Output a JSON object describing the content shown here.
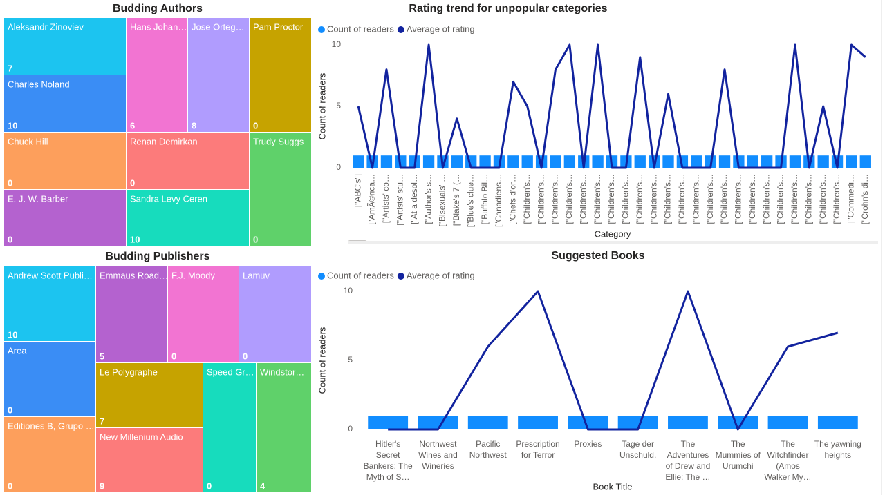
{
  "chart_data": [
    {
      "type": "treemap",
      "title": "Budding Authors",
      "categories": [
        "Aleksandr Zinoviev",
        "Charles Noland",
        "Hans Johan…",
        "Jose Orteg…",
        "Pam Proctor",
        "Chuck Hill",
        "Renan Demirkan",
        "Trudy Suggs",
        "E. J. W. Barber",
        "Sandra Levy Ceren"
      ],
      "values": [
        7,
        10,
        6,
        8,
        0,
        0,
        0,
        0,
        0,
        10
      ],
      "colors": [
        "#1cc4f0",
        "#3a8df5",
        "#f274d2",
        "#b09cfe",
        "#c6a300",
        "#fd9f5c",
        "#fc7b7b",
        "#5fd16a",
        "#b462cf",
        "#17dcbd"
      ]
    },
    {
      "type": "treemap",
      "title": "Budding Publishers",
      "categories": [
        "Andrew Scott Publi…",
        "Area",
        "Editiones B, Grupo …",
        "Emmaus Road…",
        "F.J. Moody",
        "Lamuv",
        "Le Polygraphe",
        "New Millenium Audio",
        "Speed Gr…",
        "Windstor…"
      ],
      "values": [
        10,
        0,
        0,
        5,
        0,
        0,
        7,
        9,
        0,
        4
      ],
      "colors": [
        "#1cc4f0",
        "#3a8df5",
        "#fd9f5c",
        "#b462cf",
        "#f274d2",
        "#b09cfe",
        "#c6a300",
        "#fc7b7b",
        "#17dcbd",
        "#5fd16a"
      ]
    },
    {
      "type": "combo",
      "title": "Rating trend for unpopular categories",
      "x_label": "Category",
      "y_label": "Count of readers",
      "categories": [
        "[\"ABC's\"]",
        "[\"AmÃ©rica…",
        "[\"Artists' co…",
        "[\"Artists' stu…",
        "[\"At a desol…",
        "[\"Author's s…",
        "[\"Bisexuals' …",
        "[\"Blake's 7 (…",
        "[\"Blue's clue…",
        "[\"Buffalo Bil…",
        "[\"Canadiens…",
        "[\"Chefs d'or…",
        "[\"Children's…",
        "[\"Children's…",
        "[\"Children's…",
        "[\"Children's…",
        "[\"Children's…",
        "[\"Children's…",
        "[\"Children's…",
        "[\"Children's…",
        "[\"Children's…",
        "[\"Children's…",
        "[\"Children's…",
        "[\"Children's…",
        "[\"Children's…",
        "[\"Children's…",
        "[\"Children's…",
        "[\"Children's…",
        "[\"Children's…",
        "[\"Children's…",
        "[\"Children's…",
        "[\"Children's…",
        "[\"Children's…",
        "[\"Children's…",
        "[\"Children's…",
        "[\"Commedi…",
        "[\"Crohn's di…"
      ],
      "series": [
        {
          "name": "Count of readers",
          "color": "#118dff",
          "kind": "bar",
          "values": [
            1,
            1,
            1,
            1,
            1,
            1,
            1,
            1,
            1,
            1,
            1,
            1,
            1,
            1,
            1,
            1,
            1,
            1,
            1,
            1,
            1,
            1,
            1,
            1,
            1,
            1,
            1,
            1,
            1,
            1,
            1,
            1,
            1,
            1,
            1,
            1,
            1
          ]
        },
        {
          "name": "Average of rating",
          "color": "#12239e",
          "kind": "line",
          "values": [
            5,
            0,
            8,
            0,
            0,
            10,
            0,
            4,
            0,
            0,
            0,
            7,
            5,
            0,
            8,
            10,
            0,
            10,
            0,
            0,
            9,
            0,
            6,
            0,
            0,
            0,
            8,
            0,
            0,
            0,
            0,
            10,
            0,
            5,
            0,
            10,
            9
          ]
        }
      ],
      "ylim": [
        0,
        10
      ],
      "yticks": [
        0,
        5,
        10
      ]
    },
    {
      "type": "combo",
      "title": "Suggested Books",
      "x_label": "Book Title",
      "y_label": "Count of readers",
      "categories": [
        "Hitler's Secret Bankers: The Myth of S…",
        "Northwest Wines and Wineries",
        "Pacific Northwest",
        "Prescription for Terror",
        "Proxies",
        "Tage der Unschuld.",
        "The Adventures of Drew and Ellie: The …",
        "The Mummies of Urumchi",
        "The Witchfinder (Amos Walker My…",
        "The yawning heights"
      ],
      "series": [
        {
          "name": "Count of readers",
          "color": "#118dff",
          "kind": "bar",
          "values": [
            1,
            1,
            1,
            1,
            1,
            1,
            1,
            1,
            1,
            1
          ]
        },
        {
          "name": "Average of rating",
          "color": "#12239e",
          "kind": "line",
          "values": [
            0,
            0,
            6,
            10,
            0,
            0,
            10,
            0,
            6,
            7
          ]
        }
      ],
      "ylim": [
        0,
        10
      ],
      "yticks": [
        0,
        5,
        10
      ]
    }
  ]
}
